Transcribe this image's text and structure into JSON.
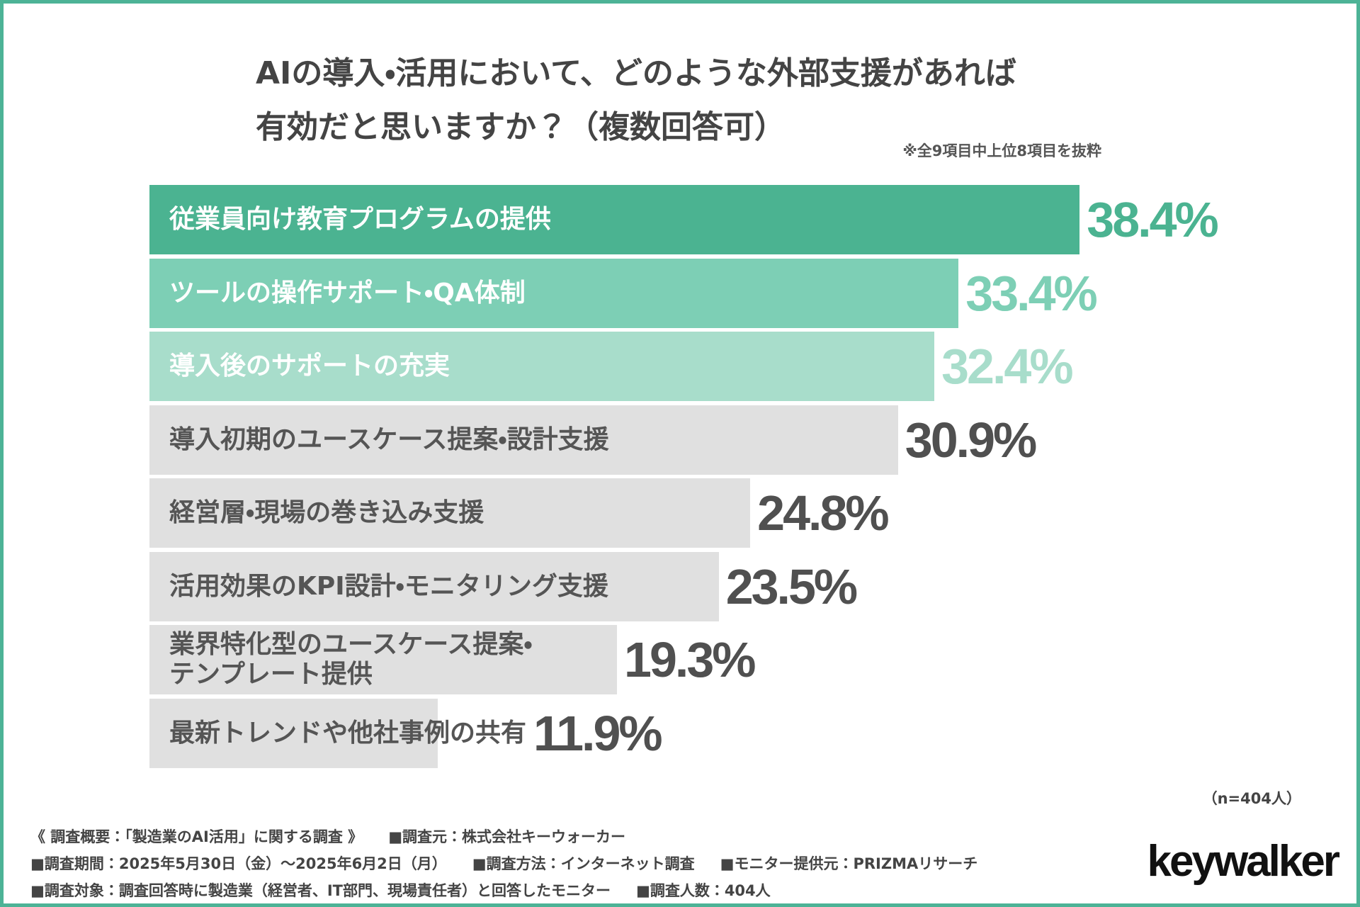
{
  "chart_data": {
    "type": "bar",
    "orientation": "horizontal",
    "title": [
      "AIの導入・活用において、どのような外部支援があれば",
      "有効だと思いますか？（複数回答可）"
    ],
    "note": "※全9項目中上位8項目を抜粋",
    "categories": [
      "従業員向け教育プログラムの提供",
      "ツールの操作サポート・QA体制",
      "導入後のサポートの充実",
      "導入初期のユースケース提案・設計支援",
      "経営層・現場の巻き込み支援",
      "活用効果のKPI設計・モニタリング支援",
      "業界特化型のユースケース提案・テンプレート提供",
      "最新トレンドや他社事例の共有"
    ],
    "values": [
      38.4,
      33.4,
      32.4,
      30.9,
      24.8,
      23.5,
      19.3,
      11.9
    ],
    "value_labels": [
      "38.4%",
      "33.4%",
      "32.4%",
      "30.9%",
      "24.8%",
      "23.5%",
      "19.3%",
      "11.9%"
    ],
    "colors": [
      "#4bb391",
      "#7dcfb5",
      "#a8ddcb",
      "#e0e0e0",
      "#e0e0e0",
      "#e0e0e0",
      "#e0e0e0",
      "#e0e0e0"
    ],
    "label_colors": [
      "#ffffff",
      "#ffffff",
      "#ffffff",
      "#555555",
      "#555555",
      "#555555",
      "#555555",
      "#555555"
    ],
    "value_label_colors": [
      "#4bb391",
      "#7dcfb5",
      "#a8ddcb",
      "#505050",
      "#505050",
      "#505050",
      "#505050",
      "#505050"
    ],
    "sample_size": "（n=404人）"
  },
  "footer": [
    [
      "《 調査概要：「製造業のAI活用」に関する調査 》",
      "■調査元：株式会社キーウォーカー"
    ],
    [
      "■調査期間：2025年5月30日（金）～2025年6月2日（月）",
      "■調査方法：インターネット調査",
      "■モニター提供元：PRIZMAリサーチ"
    ],
    [
      "■調査対象：調査回答時に製造業（経営者、IT部門、現場責任者）と回答したモニター",
      "■調査人数：404人"
    ]
  ],
  "logo": "keywalker"
}
